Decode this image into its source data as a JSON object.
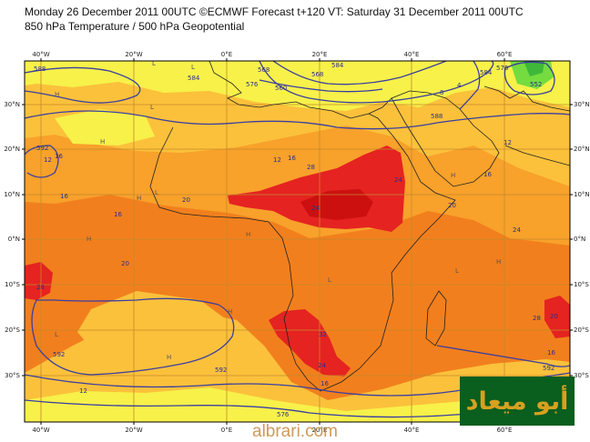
{
  "header": {
    "line1": "Monday 26 December 2011 00UTC ©ECMWF Forecast t+120 VT: Saturday 31 December 2011 00UTC",
    "line2": "850 hPa Temperature / 500 hPa Geopotential"
  },
  "axes": {
    "top_lon": [
      "40°W",
      "20°W",
      "0°E",
      "20°E",
      "40°E",
      "60°E"
    ],
    "bottom_lon": [
      "40°W",
      "20°W",
      "0°E",
      "20°E",
      "40°E",
      "60°E"
    ],
    "left_lat": [
      "30°N",
      "20°N",
      "10°N",
      "0°N",
      "10°S",
      "20°S",
      "30°S"
    ],
    "right_lat": [
      "30°N",
      "20°N",
      "10°N",
      "0°N",
      "10°S",
      "20°S",
      "30°S"
    ]
  },
  "temperature_labels": [
    "28",
    "24",
    "24",
    "28",
    "20",
    "16",
    "16",
    "12",
    "12",
    "16",
    "20",
    "16",
    "8",
    "4",
    "12",
    "24",
    "32",
    "28",
    "24",
    "20",
    "16",
    "12",
    "20",
    "16",
    "16"
  ],
  "geopotential_labels": [
    "588",
    "584",
    "592",
    "576",
    "560",
    "568",
    "552",
    "588",
    "584",
    "592",
    "592",
    "576",
    "584",
    "568",
    "576",
    "592"
  ],
  "pressure_markers": [
    "H",
    "L"
  ],
  "colors": {
    "yellow": "#f7f14a",
    "light_orange": "#fbc13b",
    "orange": "#f8a12b",
    "dark_orange": "#f27f1d",
    "red": "#e52321",
    "deep_red": "#cc1010",
    "green": "#74dc3f",
    "contour": "#3b3fa0",
    "coast": "#222222"
  },
  "branding": {
    "logo_text": "أبو ميعاد",
    "site": "albrari.com"
  }
}
